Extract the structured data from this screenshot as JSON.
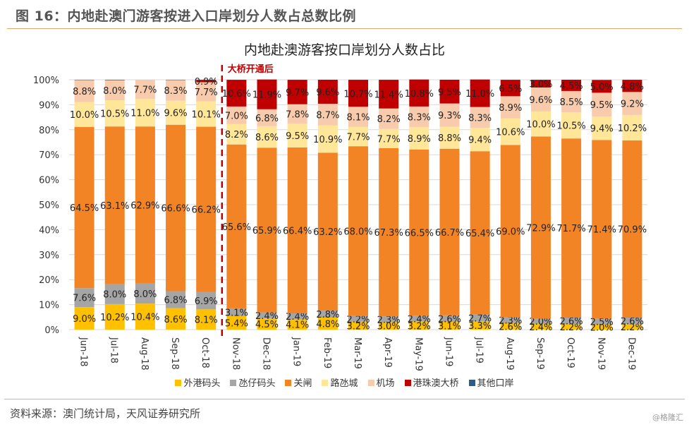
{
  "figure_title": "图 16：内地赴澳门游客按进入口岸划分人数占总数比例",
  "source": "资料来源：澳门统计局，天风证券研究所",
  "watermark": "@格隆汇",
  "chart_data": {
    "type": "bar",
    "stacked": true,
    "title": "内地赴澳游客按口岸划分人数占比",
    "annotation": "大桥开通后",
    "annotation_after_category": "Oct-18",
    "xlabel": "",
    "ylabel": "",
    "ylim": [
      0,
      100
    ],
    "yticks": [
      "0%",
      "10%",
      "20%",
      "30%",
      "40%",
      "50%",
      "60%",
      "70%",
      "80%",
      "90%",
      "100%"
    ],
    "grid": true,
    "legend_position": "bottom",
    "categories": [
      "Jun-18",
      "Jul-18",
      "Aug-18",
      "Sep-18",
      "Oct-18",
      "Nov-18",
      "Dec-18",
      "Jan-19",
      "Feb-19",
      "Mar-19",
      "Apr-19",
      "May-19",
      "Jun-19",
      "Jul-19",
      "Aug-19",
      "Sep-19",
      "Oct-19",
      "Nov-19",
      "Dec-19"
    ],
    "series": [
      {
        "name": "外港码头",
        "color": "#FFC000",
        "values": [
          9.0,
          10.2,
          10.4,
          8.6,
          8.1,
          5.4,
          4.5,
          4.1,
          4.8,
          3.2,
          3.0,
          3.2,
          3.1,
          3.3,
          2.6,
          2.4,
          2.2,
          2.0,
          2.2
        ]
      },
      {
        "name": "氹仔码头",
        "color": "#A5A5A5",
        "values": [
          7.6,
          8.0,
          8.0,
          6.8,
          6.9,
          3.1,
          2.4,
          2.4,
          2.8,
          2.2,
          2.3,
          2.4,
          2.6,
          2.7,
          2.3,
          2.0,
          2.6,
          2.5,
          2.6
        ]
      },
      {
        "name": "关闸",
        "color": "#F28426",
        "values": [
          64.5,
          63.1,
          62.9,
          66.6,
          66.2,
          65.6,
          65.9,
          66.4,
          63.2,
          68.0,
          67.3,
          66.5,
          66.7,
          65.4,
          69.0,
          72.9,
          71.7,
          71.4,
          70.9
        ]
      },
      {
        "name": "路氹城",
        "color": "#FFE699",
        "values": [
          10.0,
          10.5,
          11.0,
          9.6,
          10.1,
          8.2,
          8.6,
          9.5,
          10.9,
          7.7,
          7.7,
          8.9,
          8.8,
          9.4,
          10.6,
          10.0,
          10.5,
          9.4,
          10.2
        ]
      },
      {
        "name": "机场",
        "color": "#F8CBAD",
        "values": [
          8.8,
          8.0,
          7.7,
          8.3,
          7.7,
          7.0,
          6.8,
          7.8,
          8.7,
          8.1,
          8.2,
          8.3,
          9.3,
          8.3,
          8.9,
          9.6,
          8.5,
          9.5,
          9.2
        ]
      },
      {
        "name": "港珠澳大桥",
        "color": "#C00000",
        "values": [
          null,
          null,
          null,
          null,
          0.9,
          10.6,
          11.9,
          9.7,
          9.6,
          10.7,
          11.4,
          10.8,
          9.5,
          11.0,
          6.5,
          3.0,
          4.5,
          5.0,
          4.8
        ]
      },
      {
        "name": "其他口岸",
        "color": "#2E5C8A",
        "values": [
          0.1,
          0.2,
          0.0,
          0.1,
          0.1,
          0.1,
          0.0,
          0.1,
          0.0,
          0.1,
          0.1,
          0.0,
          0.0,
          0.0,
          0.1,
          0.1,
          0.0,
          0.2,
          0.1
        ]
      }
    ],
    "shown_labels": [
      "外港码头",
      "氹仔码头",
      "关闸",
      "路氹城",
      "机场",
      "港珠澳大桥"
    ]
  }
}
